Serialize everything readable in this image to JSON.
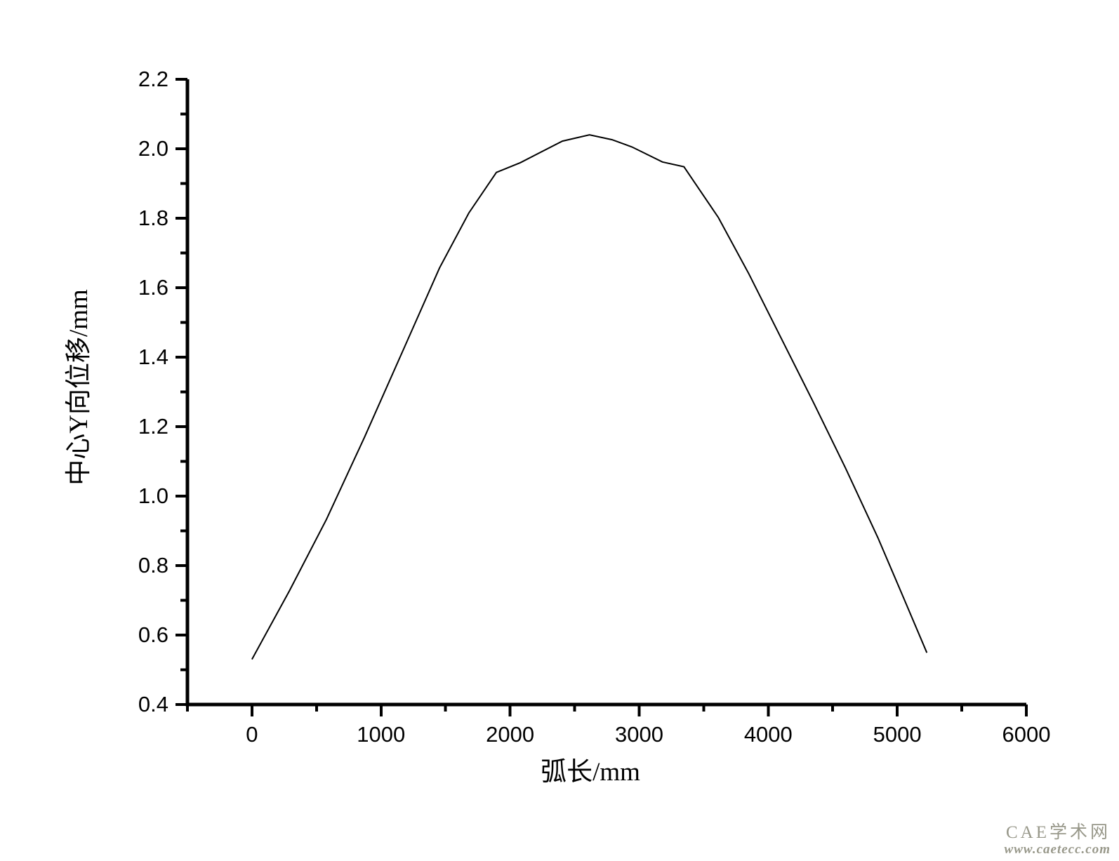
{
  "chart_data": {
    "type": "line",
    "title": "",
    "xlabel": "弧长/mm",
    "ylabel": "中心Y向位移/mm",
    "xlim": [
      -500,
      6000
    ],
    "ylim": [
      0.4,
      2.2
    ],
    "grid": false,
    "legend": "none",
    "x_major_ticks": [
      0,
      1000,
      2000,
      3000,
      4000,
      5000,
      6000
    ],
    "x_tick_labels": [
      "0",
      "1000",
      "2000",
      "3000",
      "4000",
      "5000",
      "6000"
    ],
    "x_minor_ticks": [
      -500,
      500,
      1500,
      2500,
      3500,
      4500,
      5500
    ],
    "y_major_ticks": [
      0.4,
      0.6,
      0.8,
      1.0,
      1.2,
      1.4,
      1.6,
      1.8,
      2.0,
      2.2
    ],
    "y_tick_labels": [
      "0.4",
      "0.6",
      "0.8",
      "1.0",
      "1.2",
      "1.4",
      "1.6",
      "1.8",
      "2.0",
      "2.2"
    ],
    "y_minor_ticks": [
      0.5,
      0.7,
      0.9,
      1.1,
      1.3,
      1.5,
      1.7,
      1.9,
      2.1
    ],
    "series": [
      {
        "name": "中心Y向位移",
        "color": "#000000",
        "points": [
          [
            0,
            0.53
          ],
          [
            290,
            0.727
          ],
          [
            577,
            0.933
          ],
          [
            870,
            1.168
          ],
          [
            1165,
            1.415
          ],
          [
            1453,
            1.657
          ],
          [
            1680,
            1.815
          ],
          [
            1894,
            1.932
          ],
          [
            2080,
            1.96
          ],
          [
            2405,
            2.022
          ],
          [
            2615,
            2.04
          ],
          [
            2790,
            2.026
          ],
          [
            2945,
            2.005
          ],
          [
            3180,
            1.962
          ],
          [
            3347,
            1.948
          ],
          [
            3614,
            1.802
          ],
          [
            3850,
            1.64
          ],
          [
            4100,
            1.455
          ],
          [
            4350,
            1.27
          ],
          [
            4600,
            1.08
          ],
          [
            4850,
            0.88
          ],
          [
            5040,
            0.715
          ],
          [
            5229,
            0.549
          ]
        ]
      }
    ]
  },
  "watermark": {
    "line1": "CAE学术网",
    "line2": "www.caetecc.com",
    "color": "#98988a"
  },
  "colors": {
    "axis": "#000000",
    "curve": "#000000",
    "background": "#ffffff"
  }
}
